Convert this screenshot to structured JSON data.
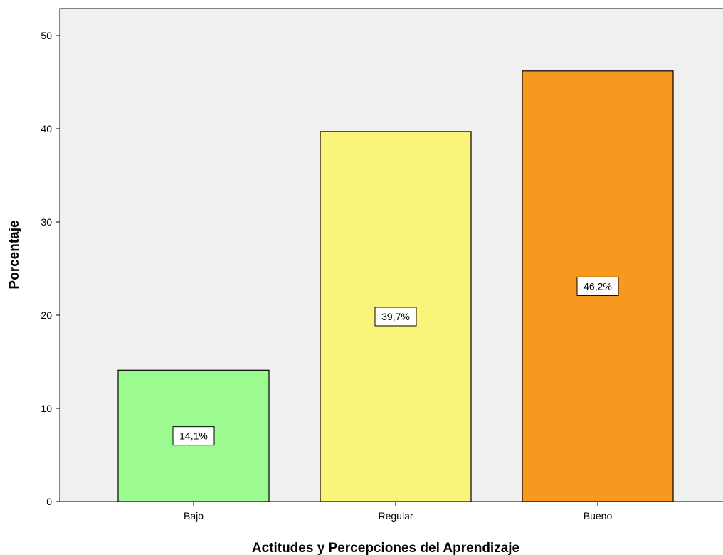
{
  "chart_data": {
    "type": "bar",
    "xlabel": "Actitudes y Percepciones del Aprendizaje",
    "ylabel": "Porcentaje",
    "categories": [
      "Bajo",
      "Regular",
      "Bueno"
    ],
    "values": [
      14.1,
      39.7,
      46.2
    ],
    "data_labels": [
      "14,1%",
      "39,7%",
      "46,2%"
    ],
    "colors": [
      "#9bfb90",
      "#f8f57a",
      "#f7981f"
    ],
    "ylim": [
      0,
      50
    ],
    "yticks": [
      0,
      10,
      20,
      30,
      40,
      50
    ],
    "grid": false,
    "legend": "none",
    "plot_background": "#f0f0f0"
  }
}
